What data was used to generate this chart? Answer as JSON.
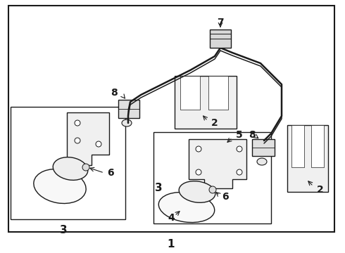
{
  "bg_color": "#ffffff",
  "border_color": "#1a1a1a",
  "line_color": "#1a1a1a",
  "label_color": "#000000",
  "figsize": [
    4.9,
    3.6
  ],
  "dpi": 100
}
